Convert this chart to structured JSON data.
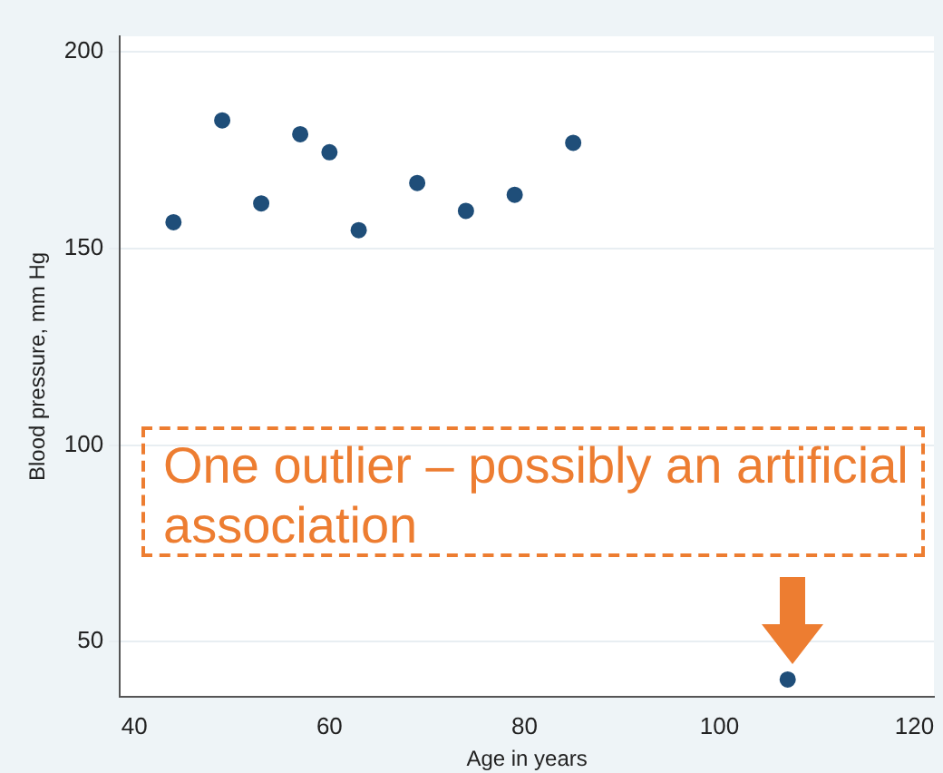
{
  "chart_data": {
    "type": "scatter",
    "xlabel": "Age in years",
    "ylabel": "Blood pressure, mm Hg",
    "x": [
      44,
      49,
      53,
      57,
      60,
      63,
      69,
      74,
      79,
      85,
      107
    ],
    "values": [
      156.7,
      182.6,
      161.5,
      179.1,
      174.5,
      154.7,
      166.7,
      159.6,
      163.7,
      176.9,
      40.4
    ],
    "color": "#1f4e79",
    "xlim": [
      38.5,
      122
    ],
    "ylim": [
      36,
      204
    ],
    "xticks": [
      40,
      60,
      80,
      100,
      120
    ],
    "yticks": [
      50,
      100,
      150,
      200
    ],
    "grid": "y",
    "legend": false,
    "marker": "circle",
    "annotations": [
      "One outlier – possibly an artificial association"
    ]
  }
}
